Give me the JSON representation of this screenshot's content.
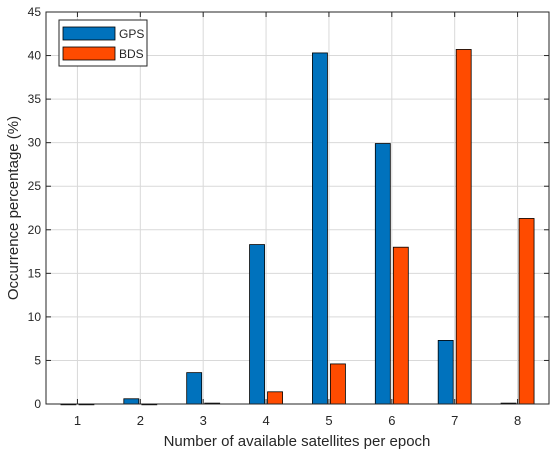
{
  "chart_data": {
    "type": "bar",
    "categories": [
      "1",
      "2",
      "3",
      "4",
      "5",
      "6",
      "7",
      "8"
    ],
    "series": [
      {
        "name": "GPS",
        "color": "#0072BD",
        "values": [
          0,
          0.6,
          3.6,
          18.3,
          40.3,
          29.9,
          7.3,
          0.1
        ]
      },
      {
        "name": "BDS",
        "color": "#FF4B00",
        "values": [
          0,
          0,
          0.1,
          1.4,
          4.6,
          18.0,
          40.7,
          21.3
        ]
      }
    ],
    "xlabel": "Number of available satellites per epoch",
    "ylabel": "Occurrence percentage (%)",
    "ylim": [
      0,
      45
    ],
    "yticks": [
      0,
      5,
      10,
      15,
      20,
      25,
      30,
      35,
      40,
      45
    ],
    "grid": true,
    "legend_position": "top-left"
  }
}
